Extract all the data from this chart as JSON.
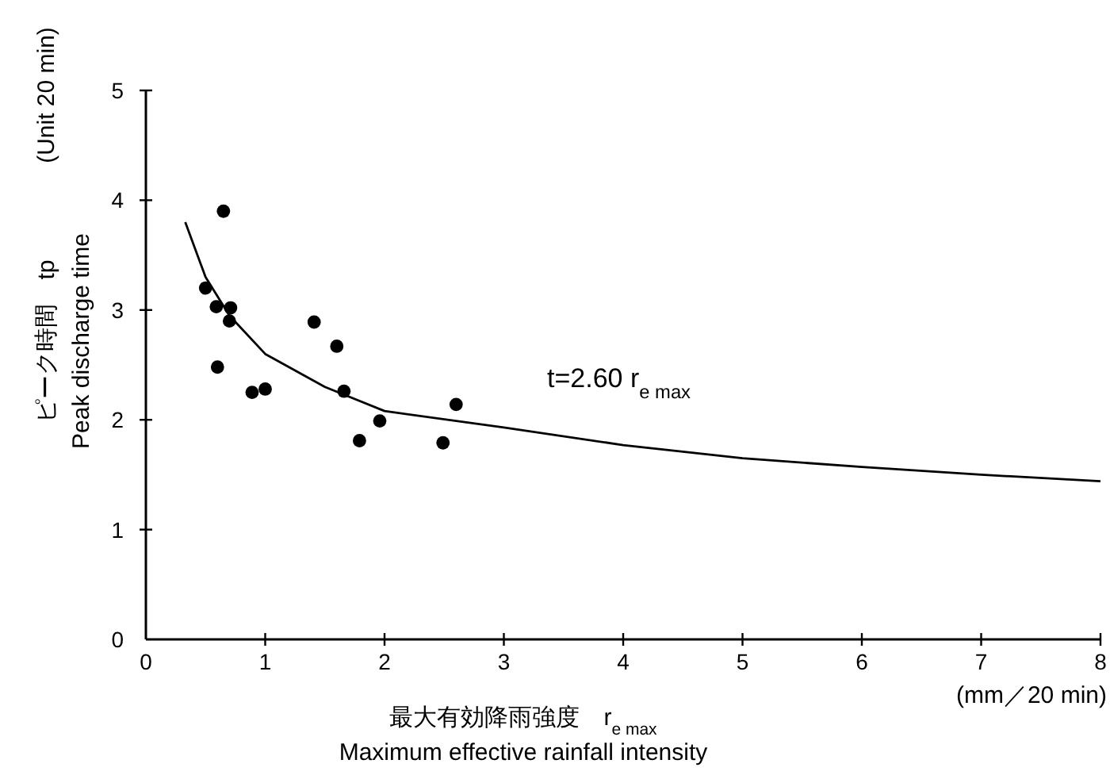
{
  "chart_data": {
    "type": "scatter",
    "xlabel": "最大有効降雨強度　r$_{e max}$\nMaximum effective rainfall intensity",
    "ylabel": "ピーク時間　tp\nPeak discharge time",
    "annotations": [
      "t=2.60  r$_{e max}$",
      "(mm／20 min)",
      "(Unit 20 min)"
    ],
    "xlim": [
      0,
      8
    ],
    "ylim": [
      0,
      5
    ],
    "xticks": [
      0,
      1,
      2,
      3,
      4,
      5,
      6,
      7,
      8
    ],
    "yticks": [
      0,
      1,
      2,
      3,
      4,
      5
    ],
    "grid": false,
    "marker": "circle",
    "series": [
      {
        "color": "#000000",
        "x": [
          0.5,
          0.65,
          0.59,
          0.71,
          0.7,
          0.6,
          0.89,
          1.0,
          1.41,
          1.6,
          1.66,
          1.96,
          1.79,
          2.49,
          2.6
        ],
        "values": [
          3.2,
          3.9,
          3.03,
          3.02,
          2.9,
          2.48,
          2.25,
          2.28,
          2.89,
          2.67,
          2.26,
          1.99,
          1.81,
          1.79,
          2.14
        ]
      },
      {
        "type": "line",
        "color": "#000000",
        "marker": "none",
        "line_style": "solid",
        "x": [
          0.33,
          0.5,
          0.7,
          1.0,
          1.5,
          2.0,
          3.0,
          4.0,
          5.0,
          6.0,
          7.0,
          8.0
        ],
        "values": [
          3.8,
          3.3,
          2.95,
          2.6,
          2.3,
          2.08,
          1.93,
          1.77,
          1.65,
          1.57,
          1.5,
          1.44
        ]
      }
    ]
  }
}
